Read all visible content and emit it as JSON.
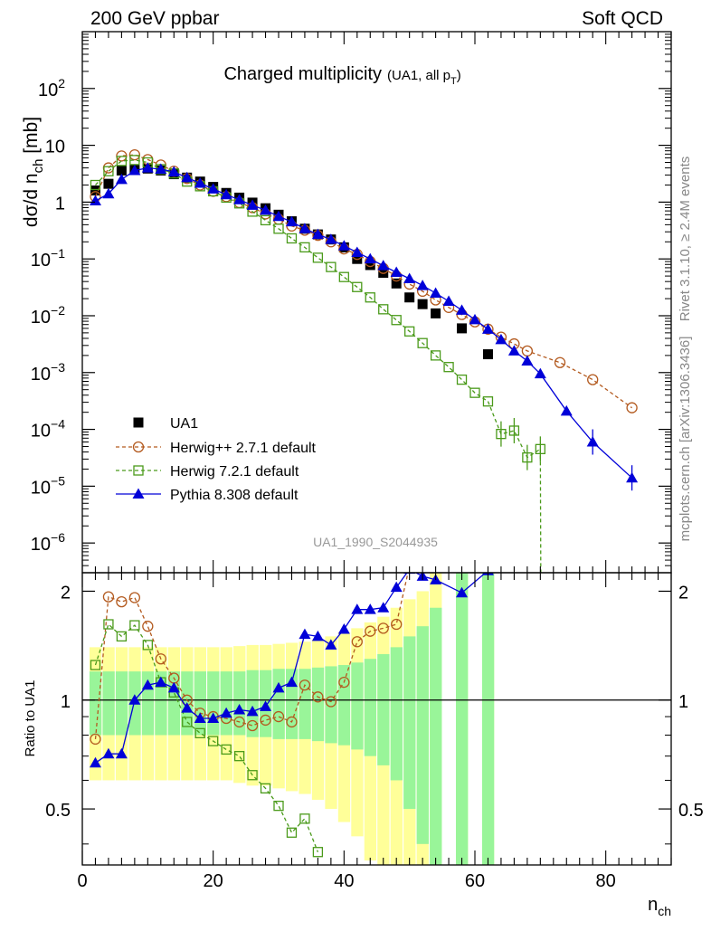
{
  "header": {
    "left": "200 GeV ppbar",
    "right": "Soft QCD"
  },
  "side": {
    "top": "Rivet 3.1.10, ≥ 2.4M events",
    "bottom": "mcplots.cern.ch [arXiv:1306.3436]"
  },
  "watermark": "UA1_1990_S2044935",
  "colors": {
    "data": "#000000",
    "herwigpp": "#b35a1f",
    "herwig7": "#4a9a1a",
    "pythia": "#0000d8",
    "band_inner": "#99f599",
    "band_outer": "#ffff99"
  },
  "chart_data": [
    {
      "type": "scatter",
      "panel": "main",
      "title": "Charged multiplicity",
      "title_note": "(UA1, all p",
      "title_note_sub": "T",
      "title_note_end": ")",
      "ylabel": "dσ/d n",
      "ylabel_sub": "ch",
      "ylabel_unit": " [mb]",
      "yscale": "log",
      "xlim": [
        0,
        90
      ],
      "ylim": [
        3e-07,
        1000
      ],
      "yticks": [
        {
          "v": 1e-06,
          "base": "10",
          "exp": "−6"
        },
        {
          "v": 1e-05,
          "base": "10",
          "exp": "−5"
        },
        {
          "v": 0.0001,
          "base": "10",
          "exp": "−4"
        },
        {
          "v": 0.001,
          "base": "10",
          "exp": "−3"
        },
        {
          "v": 0.01,
          "base": "10",
          "exp": "−2"
        },
        {
          "v": 0.1,
          "base": "10",
          "exp": "−1"
        },
        {
          "v": 1,
          "base": "1",
          "exp": ""
        },
        {
          "v": 10,
          "base": "10",
          "exp": ""
        },
        {
          "v": 100,
          "base": "10",
          "exp": "2"
        }
      ],
      "legend_position": "bottom-left",
      "series": [
        {
          "name": "UA1",
          "key": "data",
          "x": [
            2,
            4,
            6,
            8,
            10,
            12,
            14,
            16,
            18,
            20,
            22,
            24,
            26,
            28,
            30,
            32,
            34,
            36,
            38,
            40,
            42,
            44,
            46,
            48,
            50,
            52,
            54,
            58,
            62
          ],
          "y": [
            1.6,
            2.1,
            3.6,
            3.8,
            3.9,
            3.6,
            3.1,
            2.7,
            2.3,
            1.85,
            1.45,
            1.2,
            0.98,
            0.78,
            0.6,
            0.46,
            0.34,
            0.27,
            0.22,
            0.16,
            0.1,
            0.078,
            0.057,
            0.037,
            0.021,
            0.016,
            0.011,
            0.006,
            0.0021
          ]
        },
        {
          "name": "Herwig++ 2.7.1 default",
          "key": "herwigpp",
          "x": [
            2,
            4,
            6,
            8,
            10,
            12,
            14,
            16,
            18,
            20,
            22,
            24,
            26,
            28,
            30,
            32,
            34,
            36,
            38,
            40,
            42,
            44,
            46,
            48,
            50,
            52,
            54,
            56,
            58,
            60,
            62,
            64,
            66,
            68,
            73,
            78,
            84
          ],
          "y": [
            1.25,
            4.0,
            6.5,
            6.8,
            5.6,
            4.5,
            3.5,
            2.6,
            2.0,
            1.55,
            1.25,
            0.98,
            0.8,
            0.62,
            0.5,
            0.38,
            0.32,
            0.26,
            0.2,
            0.15,
            0.12,
            0.09,
            0.068,
            0.05,
            0.036,
            0.027,
            0.019,
            0.014,
            0.0105,
            0.0078,
            0.0058,
            0.0042,
            0.0032,
            0.0024,
            0.0015,
            0.00075,
            0.00024
          ]
        },
        {
          "name": "Herwig 7.2.1 default",
          "key": "herwig7",
          "x": [
            2,
            4,
            6,
            8,
            10,
            12,
            14,
            16,
            18,
            20,
            22,
            24,
            26,
            28,
            30,
            32,
            34,
            36,
            38,
            40,
            42,
            44,
            46,
            48,
            50,
            52,
            54,
            56,
            58,
            60,
            62,
            64,
            66,
            68,
            70
          ],
          "y": [
            2.0,
            3.5,
            5.3,
            5.5,
            5.0,
            3.8,
            3.2,
            2.3,
            1.9,
            1.55,
            1.2,
            0.95,
            0.68,
            0.48,
            0.34,
            0.23,
            0.16,
            0.105,
            0.072,
            0.048,
            0.032,
            0.021,
            0.013,
            0.0084,
            0.0053,
            0.0033,
            0.002,
            0.00125,
            0.00075,
            0.00044,
            0.00031,
            8.3e-05,
            9.5e-05,
            3.2e-05,
            4.5e-05
          ]
        },
        {
          "name": "Pythia 8.308 default",
          "key": "pythia",
          "x": [
            2,
            4,
            6,
            8,
            10,
            12,
            14,
            16,
            18,
            20,
            22,
            24,
            26,
            28,
            30,
            32,
            34,
            36,
            38,
            40,
            42,
            44,
            46,
            48,
            50,
            52,
            54,
            56,
            58,
            60,
            62,
            64,
            66,
            68,
            70,
            74,
            78,
            84
          ],
          "y": [
            1.05,
            1.4,
            2.5,
            3.6,
            4.0,
            3.8,
            3.4,
            2.7,
            2.15,
            1.7,
            1.35,
            1.1,
            0.88,
            0.72,
            0.56,
            0.45,
            0.34,
            0.27,
            0.22,
            0.17,
            0.13,
            0.1,
            0.076,
            0.058,
            0.045,
            0.034,
            0.025,
            0.018,
            0.0125,
            0.0085,
            0.0058,
            0.0038,
            0.0024,
            0.0016,
            0.00095,
            0.00021,
            6e-05,
            1.4e-05
          ]
        }
      ],
      "legend": [
        "UA1",
        "Herwig++ 2.7.1 default",
        "Herwig 7.2.1 default",
        "Pythia 8.308 default"
      ]
    },
    {
      "type": "line",
      "panel": "ratio",
      "ylabel": "Ratio to UA1",
      "xlabel": "n",
      "xlabel_sub": "ch",
      "xlim": [
        0,
        90
      ],
      "ylim": [
        0.35,
        2.25
      ],
      "xticks": [
        0,
        20,
        40,
        60,
        80
      ],
      "yticks": [
        0.5,
        1,
        2
      ],
      "ytick_labels": [
        "0.5",
        "1",
        "2"
      ],
      "band": {
        "x": [
          2,
          4,
          6,
          8,
          10,
          12,
          14,
          16,
          18,
          20,
          22,
          24,
          26,
          28,
          30,
          32,
          34,
          36,
          38,
          40,
          42,
          44,
          46,
          48,
          50,
          52,
          54,
          58,
          62
        ],
        "inner": [
          0.2,
          0.2,
          0.2,
          0.2,
          0.2,
          0.2,
          0.2,
          0.2,
          0.2,
          0.2,
          0.2,
          0.2,
          0.21,
          0.21,
          0.22,
          0.22,
          0.22,
          0.23,
          0.24,
          0.25,
          0.27,
          0.3,
          0.34,
          0.4,
          0.5,
          0.6,
          0.8,
          1.6,
          2.5
        ],
        "outer": [
          0.4,
          0.4,
          0.4,
          0.4,
          0.4,
          0.4,
          0.4,
          0.4,
          0.4,
          0.4,
          0.4,
          0.41,
          0.42,
          0.42,
          0.43,
          0.44,
          0.45,
          0.47,
          0.5,
          0.54,
          0.58,
          0.64,
          0.7,
          0.8,
          0.9,
          1.0,
          1.5,
          3.0,
          5.0
        ]
      },
      "series": [
        {
          "name": "Herwig++ 2.7.1 default",
          "key": "herwigpp",
          "x": [
            2,
            4,
            6,
            8,
            10,
            12,
            14,
            16,
            18,
            20,
            22,
            24,
            26,
            28,
            30,
            32,
            34,
            36,
            38,
            40,
            42,
            44,
            46,
            48,
            50,
            52
          ],
          "y": [
            0.78,
            1.93,
            1.87,
            1.92,
            1.6,
            1.3,
            1.15,
            1.0,
            0.92,
            0.9,
            0.89,
            0.87,
            0.85,
            0.88,
            0.9,
            0.87,
            1.1,
            1.02,
            0.99,
            1.12,
            1.45,
            1.55,
            1.58,
            1.62,
            2.35,
            2.33
          ]
        },
        {
          "name": "Herwig 7.2.1 default",
          "key": "herwig7",
          "x": [
            2,
            4,
            6,
            8,
            10,
            12,
            14,
            16,
            18,
            20,
            22,
            24,
            26,
            28,
            30,
            32,
            34,
            36
          ],
          "y": [
            1.25,
            1.62,
            1.5,
            1.61,
            1.42,
            1.12,
            1.05,
            0.87,
            0.81,
            0.77,
            0.73,
            0.7,
            0.62,
            0.57,
            0.51,
            0.43,
            0.47,
            0.38
          ]
        },
        {
          "name": "Pythia 8.308 default",
          "key": "pythia",
          "x": [
            2,
            4,
            6,
            8,
            10,
            12,
            14,
            16,
            18,
            20,
            22,
            24,
            26,
            28,
            30,
            32,
            34,
            36,
            38,
            40,
            42,
            44,
            46,
            48,
            50,
            52,
            54,
            58,
            62
          ],
          "y": [
            0.67,
            0.71,
            0.71,
            1.0,
            1.1,
            1.12,
            1.08,
            0.95,
            0.89,
            0.89,
            0.92,
            0.94,
            0.93,
            0.96,
            1.08,
            1.12,
            1.52,
            1.5,
            1.42,
            1.57,
            1.78,
            1.78,
            1.8,
            2.05,
            2.3,
            2.2,
            2.15,
            1.98,
            2.28
          ]
        }
      ]
    }
  ]
}
